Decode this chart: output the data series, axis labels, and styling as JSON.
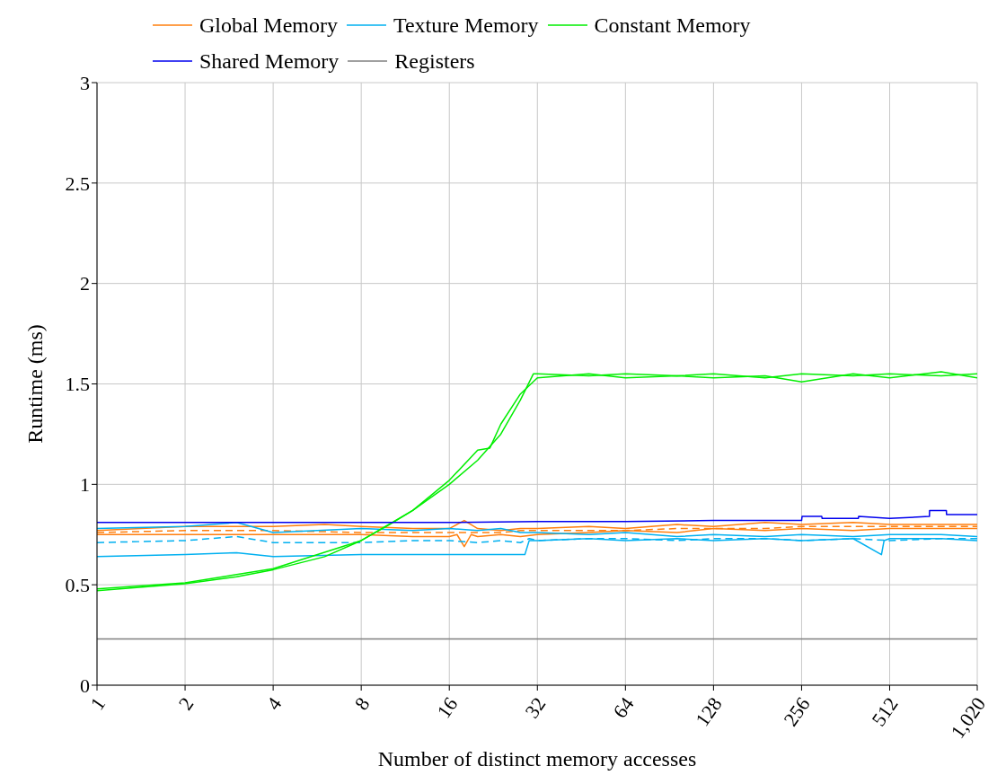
{
  "chart_data": {
    "type": "line",
    "xlabel": "Number of distinct memory accesses",
    "ylabel": "Runtime (ms)",
    "log": "x",
    "xlim": [
      1,
      1020
    ],
    "xticks": [
      1,
      2,
      4,
      8,
      16,
      32,
      64,
      128,
      256,
      512,
      {
        "value": 1020,
        "label": "1,020"
      }
    ],
    "ylim": [
      0,
      3
    ],
    "yticks": [
      0,
      0.5,
      1,
      1.5,
      2,
      2.5,
      3
    ],
    "grid": true,
    "legend": "top",
    "marker": "none",
    "series": [
      {
        "name": "Global Memory",
        "color": "#ff7f0e",
        "x": [
          1,
          2,
          4,
          6,
          8,
          12,
          16,
          18,
          20,
          24,
          28,
          32,
          48,
          64,
          96,
          128,
          192,
          256,
          384,
          512,
          768,
          1020
        ],
        "values": [
          0.77,
          0.79,
          0.79,
          0.8,
          0.79,
          0.78,
          0.78,
          0.82,
          0.78,
          0.77,
          0.78,
          0.78,
          0.79,
          0.78,
          0.8,
          0.79,
          0.81,
          0.8,
          0.81,
          0.8,
          0.8,
          0.8
        ]
      },
      {
        "color": "#ff7f0e",
        "line_style": "dashed",
        "x": [
          1,
          2,
          4,
          8,
          12,
          16,
          20,
          24,
          28,
          32,
          48,
          64,
          96,
          128,
          192,
          256,
          384,
          512,
          768,
          1020
        ],
        "values": [
          0.76,
          0.77,
          0.77,
          0.76,
          0.76,
          0.76,
          0.76,
          0.76,
          0.77,
          0.77,
          0.77,
          0.77,
          0.78,
          0.78,
          0.78,
          0.79,
          0.79,
          0.79,
          0.79,
          0.79
        ]
      },
      {
        "color": "#ff7f0e",
        "x": [
          1,
          2,
          4,
          8,
          12,
          16,
          17,
          18,
          19,
          20,
          24,
          28,
          32,
          48,
          64,
          96,
          128,
          192,
          256,
          384,
          512,
          768,
          1020
        ],
        "values": [
          0.75,
          0.75,
          0.75,
          0.75,
          0.74,
          0.74,
          0.75,
          0.69,
          0.75,
          0.74,
          0.75,
          0.74,
          0.75,
          0.76,
          0.77,
          0.76,
          0.78,
          0.77,
          0.78,
          0.77,
          0.78,
          0.78,
          0.78
        ]
      },
      {
        "name": "Texture Memory",
        "color": "#00b0f0",
        "x": [
          1,
          2,
          3,
          4,
          8,
          12,
          16,
          20,
          24,
          28,
          32,
          48,
          64,
          96,
          128,
          192,
          256,
          384,
          512,
          768,
          1020
        ],
        "values": [
          0.78,
          0.79,
          0.81,
          0.76,
          0.78,
          0.77,
          0.78,
          0.77,
          0.78,
          0.76,
          0.76,
          0.75,
          0.76,
          0.74,
          0.75,
          0.74,
          0.75,
          0.74,
          0.75,
          0.75,
          0.74
        ]
      },
      {
        "color": "#00b0f0",
        "line_style": "dashed",
        "x": [
          1,
          2,
          3,
          4,
          8,
          12,
          16,
          20,
          24,
          28,
          30,
          32,
          48,
          64,
          96,
          128,
          192,
          256,
          384,
          512,
          768,
          1020
        ],
        "values": [
          0.71,
          0.72,
          0.74,
          0.71,
          0.71,
          0.72,
          0.72,
          0.71,
          0.72,
          0.71,
          0.73,
          0.72,
          0.73,
          0.73,
          0.72,
          0.73,
          0.73,
          0.72,
          0.73,
          0.72,
          0.73,
          0.73
        ]
      },
      {
        "color": "#00b0f0",
        "x": [
          1,
          2,
          3,
          4,
          8,
          12,
          16,
          20,
          24,
          29,
          30,
          32,
          48,
          64,
          96,
          128,
          192,
          256,
          384,
          480,
          490,
          512,
          768,
          1020
        ],
        "values": [
          0.64,
          0.65,
          0.66,
          0.64,
          0.65,
          0.65,
          0.65,
          0.65,
          0.65,
          0.65,
          0.72,
          0.72,
          0.73,
          0.72,
          0.73,
          0.72,
          0.73,
          0.72,
          0.73,
          0.65,
          0.72,
          0.73,
          0.73,
          0.72
        ]
      },
      {
        "name": "Constant Memory",
        "color": "#00ee00",
        "x": [
          1,
          2,
          3,
          4,
          6,
          8,
          10,
          12,
          16,
          20,
          24,
          28,
          31,
          32,
          48,
          64,
          96,
          128,
          192,
          256,
          384,
          512,
          768,
          1020
        ],
        "values": [
          0.47,
          0.505,
          0.54,
          0.575,
          0.64,
          0.72,
          0.8,
          0.87,
          1.0,
          1.12,
          1.25,
          1.42,
          1.55,
          1.55,
          1.54,
          1.55,
          1.54,
          1.55,
          1.53,
          1.55,
          1.54,
          1.55,
          1.54,
          1.55
        ]
      },
      {
        "color": "#00ee00",
        "x": [
          1,
          2,
          4,
          8,
          12,
          16,
          20,
          22,
          24,
          28,
          32,
          48,
          64,
          96,
          128,
          192,
          256,
          384,
          512,
          768,
          1020
        ],
        "values": [
          0.48,
          0.51,
          0.58,
          0.72,
          0.87,
          1.02,
          1.17,
          1.18,
          1.3,
          1.45,
          1.53,
          1.55,
          1.53,
          1.54,
          1.53,
          1.54,
          1.51,
          1.55,
          1.53,
          1.56,
          1.53
        ]
      },
      {
        "name": "Shared Memory",
        "color": "#0000ee",
        "x": [
          1,
          2,
          4,
          8,
          16,
          32,
          64,
          128,
          256,
          257,
          300,
          301,
          384,
          400,
          401,
          512,
          700,
          701,
          800,
          801,
          1020
        ],
        "values": [
          0.81,
          0.81,
          0.81,
          0.81,
          0.81,
          0.815,
          0.815,
          0.82,
          0.82,
          0.84,
          0.84,
          0.83,
          0.83,
          0.83,
          0.84,
          0.83,
          0.84,
          0.87,
          0.87,
          0.85,
          0.85
        ]
      },
      {
        "name": "Registers",
        "color": "#808080",
        "x": [
          1,
          1020
        ],
        "values": [
          0.23,
          0.23
        ]
      }
    ]
  }
}
